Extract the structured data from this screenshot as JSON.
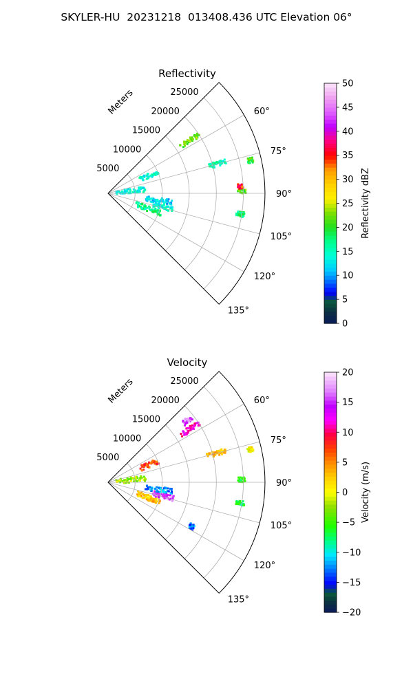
{
  "figure_title": "SKYLER-HU  20231218  013408.436 UTC Elevation 06°",
  "chart_data": [
    {
      "type": "heatmap",
      "title": "Reflectivity",
      "radial_label": "Meters",
      "radial_ticks": [
        "5000",
        "10000",
        "15000",
        "20000",
        "25000"
      ],
      "radial_values": [
        5000,
        10000,
        15000,
        20000,
        25000
      ],
      "angle_ticks": [
        "60°",
        "75°",
        "90°",
        "105°",
        "120°",
        "135°"
      ],
      "angle_values": [
        60,
        75,
        90,
        105,
        120,
        135
      ],
      "angle_range": [
        45,
        135
      ],
      "r_range": [
        0,
        29000
      ],
      "grid": true,
      "colorbar": {
        "label": "Reflectivity dBZ",
        "min": 0,
        "max": 50,
        "ticks": [
          "0",
          "5",
          "10",
          "15",
          "20",
          "25",
          "30",
          "35",
          "40",
          "45",
          "50"
        ],
        "tick_values": [
          0,
          5,
          10,
          15,
          20,
          25,
          30,
          35,
          40,
          45,
          50
        ]
      },
      "echo_clusters": [
        {
          "az": 57,
          "r": [
            16000,
            20000
          ],
          "value": 22
        },
        {
          "az": 75,
          "r": [
            19000,
            22500
          ],
          "value": 15
        },
        {
          "az": 67,
          "r": [
            6500,
            10000
          ],
          "value": 14
        },
        {
          "az": 84,
          "r": [
            1500,
            7000
          ],
          "value": 14
        },
        {
          "az": 111,
          "r": [
            5500,
            10500
          ],
          "value": 17
        },
        {
          "az": 104,
          "r": [
            8500,
            12500
          ],
          "value": 14
        },
        {
          "az": 98,
          "r": [
            7000,
            12000
          ],
          "value": 12
        },
        {
          "az": 89,
          "r": [
            24000,
            25500
          ],
          "value": 22
        },
        {
          "az": 87,
          "r": [
            24000,
            25000
          ],
          "value": 35
        },
        {
          "az": 99,
          "r": [
            24000,
            25500
          ],
          "value": 18
        },
        {
          "az": 77,
          "r": [
            26500,
            27500
          ],
          "value": 20
        }
      ]
    },
    {
      "type": "heatmap",
      "title": "Velocity",
      "radial_label": "Meters",
      "radial_ticks": [
        "5000",
        "10000",
        "15000",
        "20000",
        "25000"
      ],
      "radial_values": [
        5000,
        10000,
        15000,
        20000,
        25000
      ],
      "angle_ticks": [
        "60°",
        "75°",
        "90°",
        "105°",
        "120°",
        "135°"
      ],
      "angle_values": [
        60,
        75,
        90,
        105,
        120,
        135
      ],
      "angle_range": [
        45,
        135
      ],
      "r_range": [
        0,
        29000
      ],
      "grid": true,
      "colorbar": {
        "label": "Velocity (m/s)",
        "min": -20,
        "max": 20,
        "ticks": [
          "−20",
          "−15",
          "−10",
          "−5",
          "0",
          "5",
          "10",
          "15",
          "20"
        ],
        "tick_values": [
          -20,
          -15,
          -10,
          -5,
          0,
          5,
          10,
          15,
          20
        ]
      },
      "echo_clusters": [
        {
          "az": 57,
          "r": [
            16000,
            20000
          ],
          "value": 12
        },
        {
          "az": 52,
          "r": [
            17500,
            19500
          ],
          "value": 16
        },
        {
          "az": 75,
          "r": [
            19000,
            22500
          ],
          "value": 3
        },
        {
          "az": 67,
          "r": [
            6500,
            10000
          ],
          "value": 7
        },
        {
          "az": 84,
          "r": [
            1500,
            7000
          ],
          "value": -2
        },
        {
          "az": 111,
          "r": [
            5500,
            10500
          ],
          "value": 3
        },
        {
          "az": 104,
          "r": [
            8500,
            12500
          ],
          "value": 15
        },
        {
          "az": 98,
          "r": [
            7000,
            12000
          ],
          "value": -12
        },
        {
          "az": 89,
          "r": [
            24000,
            25500
          ],
          "value": -6
        },
        {
          "az": 99,
          "r": [
            24000,
            25500
          ],
          "value": -7
        },
        {
          "az": 118,
          "r": [
            17000,
            18000
          ],
          "value": -13
        },
        {
          "az": 77,
          "r": [
            26500,
            27500
          ],
          "value": 1
        }
      ]
    }
  ]
}
